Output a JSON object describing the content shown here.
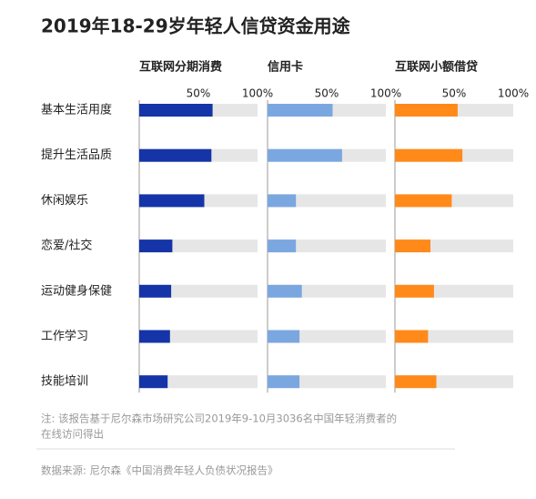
{
  "chart_data": {
    "type": "bar",
    "orientation": "horizontal",
    "title": "2019年18-29岁年轻人信贷资金用途",
    "categories": [
      "基本生活用度",
      "提升生活品质",
      "休闲娱乐",
      "恋爱/社交",
      "运动健身保健",
      "工作学习",
      "技能培训"
    ],
    "series": [
      {
        "name": "互联网分期消费",
        "color": "#1534a8",
        "values": [
          62,
          61,
          55,
          28,
          27,
          26,
          24
        ]
      },
      {
        "name": "信用卡",
        "color": "#7ba7e0",
        "values": [
          55,
          63,
          24,
          24,
          29,
          27,
          27
        ]
      },
      {
        "name": "互联网小额借贷",
        "color": "#ff8a1a",
        "values": [
          53,
          57,
          48,
          30,
          33,
          28,
          35
        ]
      }
    ],
    "xlim": [
      0,
      100
    ],
    "xticks": [
      {
        "value": 50,
        "label": "50%"
      },
      {
        "value": 100,
        "label": "100%"
      }
    ],
    "track_color": "#e6e6e6",
    "note": [
      "注: 该报告基于尼尔森市场研究公司2019年9-10月3036名中国年轻消费者的",
      "在线访问得出"
    ],
    "source": "数据来源: 尼尔森《中国消费年轻人负债状况报告》"
  }
}
